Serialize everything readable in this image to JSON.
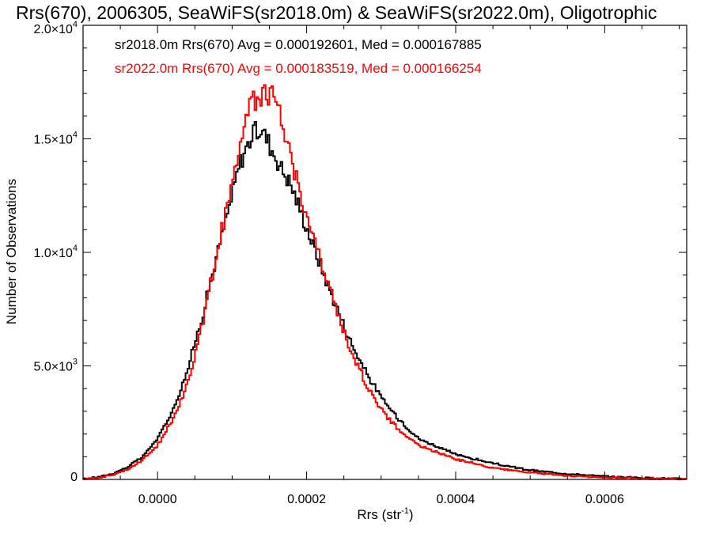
{
  "chart_data": {
    "type": "line",
    "title": "Rrs(670), 2006305, SeaWiFS(sr2018.0m) & SeaWiFS(sr2022.0m), Oligotrophic",
    "xlabel": "Rrs (str",
    "xlabel_sup": "-1",
    "xlabel_close": ")",
    "ylabel": "Number of Observations",
    "xlim": [
      -0.0001,
      0.00071
    ],
    "ylim": [
      0,
      20000
    ],
    "grid": false,
    "x_ticks": [
      {
        "value": 0.0,
        "label": "0.0000"
      },
      {
        "value": 0.0002,
        "label": "0.0002"
      },
      {
        "value": 0.0004,
        "label": "0.0004"
      },
      {
        "value": 0.0006,
        "label": "0.0006"
      }
    ],
    "y_ticks": [
      {
        "value": 0,
        "mant": "0",
        "exp": ""
      },
      {
        "value": 5000,
        "mant": "5.0×10",
        "exp": "3"
      },
      {
        "value": 10000,
        "mant": "1.0×10",
        "exp": "4"
      },
      {
        "value": 15000,
        "mant": "1.5×10",
        "exp": "4"
      },
      {
        "value": 20000,
        "mant": "2.0×10",
        "exp": "4"
      }
    ],
    "series": [
      {
        "name": "sr2018.0m",
        "stats_label": "sr2018.0m Rrs(670) Avg = 0.000192601, Med = 0.000167885",
        "color": "#000000",
        "x": [
          -0.0001,
          -8e-05,
          -6e-05,
          -4e-05,
          -2e-05,
          0.0,
          2e-05,
          4e-05,
          6e-05,
          8e-05,
          0.0001,
          0.00011,
          0.00012,
          0.00013,
          0.00014,
          0.00015,
          0.00016,
          0.00017,
          0.00018,
          0.0002,
          0.00022,
          0.00024,
          0.00026,
          0.00028,
          0.0003,
          0.00032,
          0.00035,
          0.0004,
          0.00045,
          0.0005,
          0.00055,
          0.0006,
          0.00065,
          0.00071
        ],
        "values": [
          20,
          100,
          250,
          550,
          1000,
          1800,
          3000,
          4800,
          7200,
          9900,
          12500,
          13900,
          14700,
          15300,
          15400,
          14800,
          14100,
          13500,
          12900,
          11100,
          9300,
          7600,
          6000,
          4700,
          3600,
          2800,
          1800,
          1100,
          700,
          400,
          250,
          130,
          70,
          20
        ]
      },
      {
        "name": "sr2022.0m",
        "stats_label": "sr2022.0m Rrs(670) Avg = 0.000183519, Med = 0.000166254",
        "color": "#ff0000",
        "x": [
          -0.0001,
          -8e-05,
          -6e-05,
          -4e-05,
          -2e-05,
          0.0,
          2e-05,
          4e-05,
          6e-05,
          8e-05,
          0.0001,
          0.00011,
          0.00012,
          0.00013,
          0.00014,
          0.00015,
          0.00016,
          0.00017,
          0.00018,
          0.0002,
          0.00022,
          0.00024,
          0.00026,
          0.00028,
          0.0003,
          0.00032,
          0.00035,
          0.0004,
          0.00045,
          0.0005,
          0.00055,
          0.0006,
          0.00065,
          0.00071
        ],
        "values": [
          20,
          80,
          200,
          450,
          850,
          1500,
          2600,
          4200,
          6800,
          10100,
          12900,
          14900,
          16100,
          16700,
          17000,
          17000,
          16600,
          15400,
          14100,
          11600,
          9500,
          7500,
          5600,
          4200,
          3100,
          2300,
          1500,
          900,
          500,
          300,
          150,
          90,
          40,
          10
        ]
      }
    ]
  }
}
